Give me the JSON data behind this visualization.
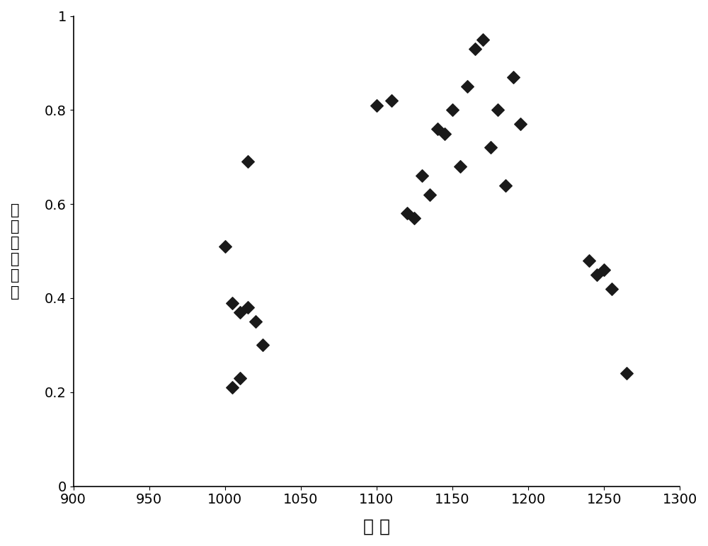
{
  "x_data": [
    1000,
    1005,
    1010,
    1015,
    1020,
    1025,
    1005,
    1010,
    1015,
    1100,
    1110,
    1120,
    1125,
    1130,
    1135,
    1140,
    1145,
    1150,
    1155,
    1160,
    1165,
    1170,
    1175,
    1180,
    1185,
    1190,
    1195,
    1240,
    1245,
    1250,
    1255,
    1265
  ],
  "y_data": [
    0.51,
    0.39,
    0.37,
    0.38,
    0.35,
    0.3,
    0.21,
    0.23,
    0.69,
    0.81,
    0.82,
    0.58,
    0.57,
    0.66,
    0.62,
    0.76,
    0.75,
    0.8,
    0.68,
    0.85,
    0.93,
    0.95,
    0.72,
    0.8,
    0.64,
    0.87,
    0.77,
    0.48,
    0.45,
    0.46,
    0.42,
    0.24
  ],
  "xlabel": "海 拔",
  "ylabel": "种群综合指标",
  "xlim": [
    900,
    1300
  ],
  "ylim": [
    0,
    1
  ],
  "xticks": [
    900,
    950,
    1000,
    1050,
    1100,
    1150,
    1200,
    1250,
    1300
  ],
  "yticks": [
    0,
    0.2,
    0.4,
    0.6,
    0.8,
    1.0
  ],
  "ytick_labels": [
    "0",
    "0.2",
    "0.4",
    "0.6",
    "0.8",
    "1"
  ],
  "marker": "D",
  "marker_color": "#1a1a1a",
  "marker_size": 80,
  "bg_color": "#ffffff",
  "xlabel_fontsize": 18,
  "ylabel_fontsize": 15,
  "tick_fontsize": 14
}
